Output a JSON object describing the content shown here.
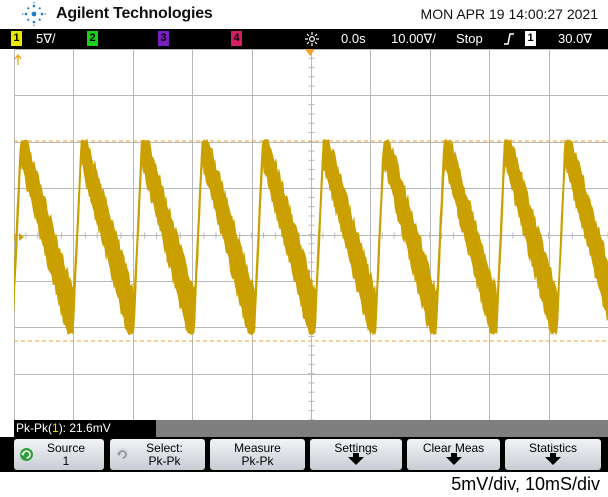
{
  "header": {
    "brand": "Agilent Technologies",
    "datetime": "MON APR 19 14:00:27 2021"
  },
  "status_bar": {
    "ch1_num": "1",
    "ch1_scale": "5∇/",
    "ch2_num": "2",
    "ch3_num": "3",
    "ch4_num": "4",
    "trigger_delay": "0.0s",
    "timebase": "10.00∇/",
    "run_state": "Stop",
    "trigger_source": "1",
    "trigger_level": "30.0∇",
    "colors": {
      "ch1": "#e8e800",
      "ch2": "#17d017",
      "ch3": "#7a1fbf",
      "ch4": "#d32063"
    }
  },
  "screen": {
    "trace_color": "#c9a000",
    "cursor_color": "#f0a030",
    "ch1_marker": "1"
  },
  "measurement": {
    "prefix": "Pk-Pk(",
    "channel": "1",
    "suffix": "): 21.6mV"
  },
  "softkeys": [
    {
      "line1": "Source",
      "line2": "1",
      "icon": "rotate-knob-icon"
    },
    {
      "line1": "Select:",
      "line2": "Pk-Pk",
      "icon": "rotate-knob-icon"
    },
    {
      "line1": "Measure",
      "line2": "Pk-Pk"
    },
    {
      "line1": "Settings",
      "icon": "down-arrow-icon"
    },
    {
      "line1": "Clear Meas",
      "icon": "down-arrow-icon"
    },
    {
      "line1": "Statistics",
      "icon": "down-arrow-icon"
    }
  ],
  "caption": "5mV/div, 10mS/div"
}
